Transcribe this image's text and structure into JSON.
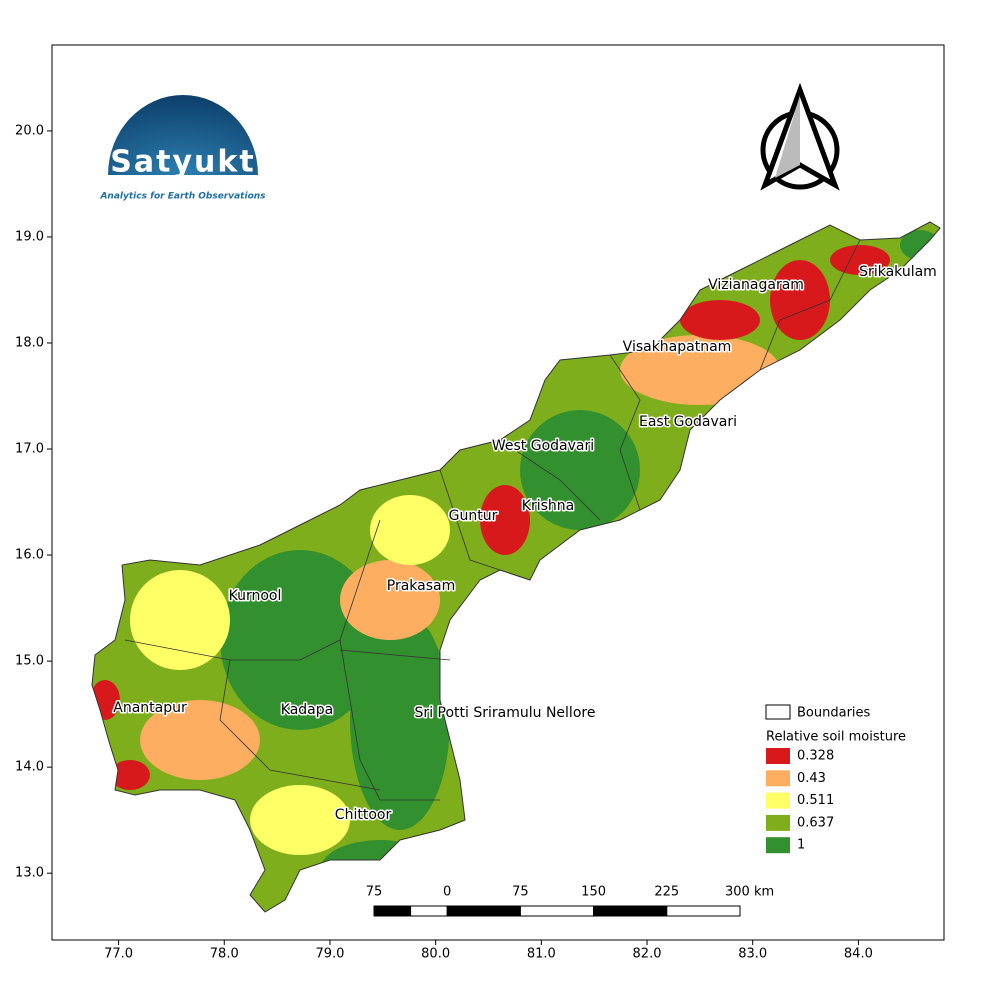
{
  "map": {
    "xlim": [
      76.37,
      84.81
    ],
    "ylim": [
      12.37,
      20.81
    ],
    "xticks": [
      {
        "value": 77,
        "label": "77.0"
      },
      {
        "value": 78,
        "label": "78.0"
      },
      {
        "value": 79,
        "label": "79.0"
      },
      {
        "value": 80,
        "label": "80.0"
      },
      {
        "value": 81,
        "label": "81.0"
      },
      {
        "value": 82,
        "label": "82.0"
      },
      {
        "value": 83,
        "label": "83.0"
      },
      {
        "value": 84,
        "label": "84.0"
      }
    ],
    "yticks": [
      {
        "value": 13,
        "label": "13.0"
      },
      {
        "value": 14,
        "label": "14.0"
      },
      {
        "value": 15,
        "label": "15.0"
      },
      {
        "value": 16,
        "label": "16.0"
      },
      {
        "value": 17,
        "label": "17.0"
      },
      {
        "value": 18,
        "label": "18.0"
      },
      {
        "value": 19,
        "label": "19.0"
      },
      {
        "value": 20,
        "label": "20.0"
      }
    ],
    "districts": [
      "Srikakulam",
      "Vizianagaram",
      "Visakhapatnam",
      "East Godavari",
      "West Godavari",
      "Krishna",
      "Guntur",
      "Prakasam",
      "Kurnool",
      "Anantapur",
      "Kadapa",
      "Sri Potti Sriramulu Nellore",
      "Chittoor"
    ],
    "legend": {
      "boundaries": "Boundaries",
      "title": "Relative soil moisture",
      "classes": [
        {
          "value": 0.328,
          "color": "#d7191c"
        },
        {
          "value": 0.43,
          "color": "#fdae61"
        },
        {
          "value": 0.511,
          "color": "#ffff66"
        },
        {
          "value": 0.637,
          "color": "#7fae1c"
        },
        {
          "value": 1,
          "color": "#33902e"
        }
      ]
    },
    "scale_bar": {
      "ticks": [
        {
          "value": -75,
          "label": "75"
        },
        0,
        75,
        150,
        225,
        {
          "value": 300,
          "label": "300 km"
        }
      ]
    },
    "logo": {
      "name": "Satyukt",
      "tagline": "Analytics for Earth Observations"
    }
  }
}
